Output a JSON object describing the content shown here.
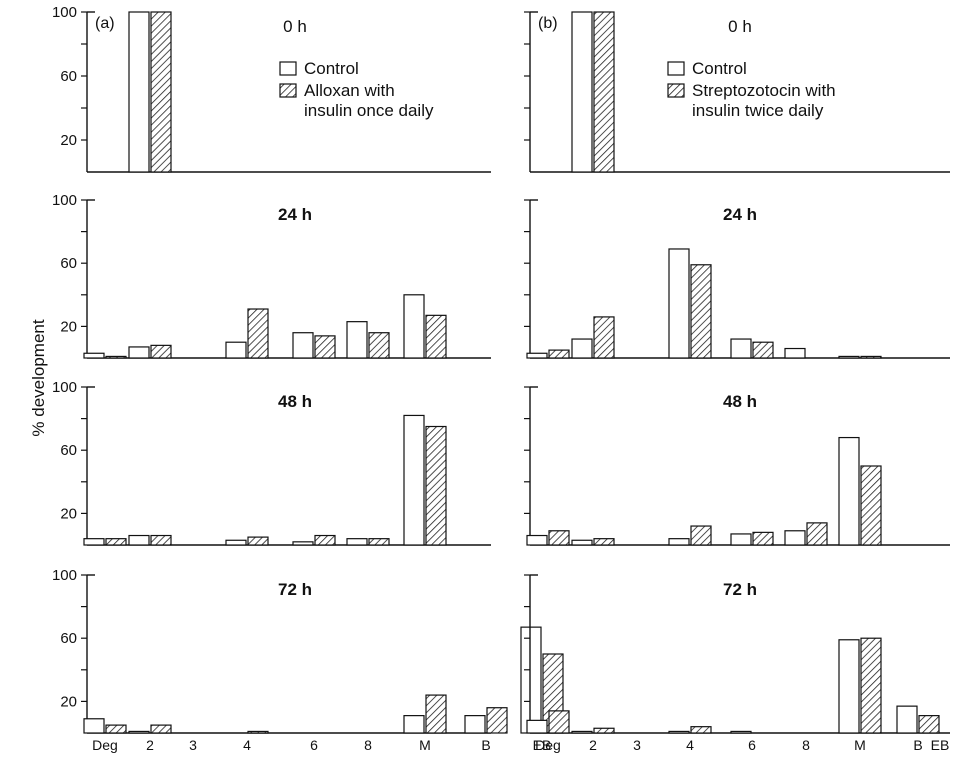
{
  "figure": {
    "ylabel": "% development",
    "categories": [
      "Deg",
      "2",
      "3",
      "4",
      "6",
      "8",
      "M",
      "B",
      "EB"
    ]
  },
  "colors": {
    "control": "#ffffff",
    "treated_hatch": "#222222",
    "axis": "#111111"
  },
  "chart_data": [
    {
      "type": "bar",
      "panel_label": "(a)",
      "time_label": "0 h",
      "legend": [
        "Control",
        "Alloxan with insulin once daily"
      ],
      "legend_lines": [
        [
          "Control"
        ],
        [
          "Alloxan with",
          "insulin once daily"
        ]
      ],
      "categories": [
        "Deg",
        "2",
        "3",
        "4",
        "6",
        "8",
        "M",
        "B",
        "EB"
      ],
      "series": [
        {
          "name": "Control",
          "values": [
            0,
            100,
            0,
            0,
            0,
            0,
            0,
            0,
            0
          ]
        },
        {
          "name": "Alloxan with insulin once daily",
          "values": [
            0,
            100,
            0,
            0,
            0,
            0,
            0,
            0,
            0
          ]
        }
      ],
      "yticks": [
        "100",
        "60",
        "20"
      ],
      "ylim": [
        0,
        100
      ],
      "ylabel": "% development"
    },
    {
      "type": "bar",
      "panel_label": "(b)",
      "time_label": "0 h",
      "legend": [
        "Control",
        "Streptozotocin with insulin twice daily"
      ],
      "legend_lines": [
        [
          "Control"
        ],
        [
          "Streptozotocin with",
          "insulin twice daily"
        ]
      ],
      "categories": [
        "Deg",
        "2",
        "3",
        "4",
        "6",
        "8",
        "M",
        "B",
        "EB"
      ],
      "series": [
        {
          "name": "Control",
          "values": [
            0,
            100,
            0,
            0,
            0,
            0,
            0,
            0,
            0
          ]
        },
        {
          "name": "Streptozotocin with insulin twice daily",
          "values": [
            0,
            100,
            0,
            0,
            0,
            0,
            0,
            0,
            0
          ]
        }
      ],
      "yticks": [],
      "ylim": [
        0,
        100
      ]
    },
    {
      "type": "bar",
      "time_label": "24 h",
      "categories": [
        "Deg",
        "2",
        "3",
        "4",
        "6",
        "8",
        "M",
        "B",
        "EB"
      ],
      "series": [
        {
          "name": "Control",
          "values": [
            3,
            7,
            0,
            10,
            16,
            23,
            40,
            0,
            0
          ]
        },
        {
          "name": "Alloxan with insulin once daily",
          "values": [
            1,
            8,
            0,
            31,
            14,
            16,
            27,
            0,
            0
          ]
        }
      ],
      "yticks": [
        "100",
        "60",
        "20"
      ],
      "ylim": [
        0,
        100
      ]
    },
    {
      "type": "bar",
      "time_label": "24 h",
      "categories": [
        "Deg",
        "2",
        "3",
        "4",
        "6",
        "8",
        "M",
        "B",
        "EB"
      ],
      "series": [
        {
          "name": "Control",
          "values": [
            3,
            12,
            0,
            69,
            12,
            6,
            1,
            0,
            0
          ]
        },
        {
          "name": "Streptozotocin with insulin twice daily",
          "values": [
            5,
            26,
            0,
            59,
            10,
            0,
            1,
            0,
            0
          ]
        }
      ],
      "yticks": [],
      "ylim": [
        0,
        100
      ]
    },
    {
      "type": "bar",
      "time_label": "48 h",
      "categories": [
        "Deg",
        "2",
        "3",
        "4",
        "6",
        "8",
        "M",
        "B",
        "EB"
      ],
      "series": [
        {
          "name": "Control",
          "values": [
            4,
            6,
            0,
            3,
            2,
            4,
            82,
            0,
            0
          ]
        },
        {
          "name": "Alloxan with insulin once daily",
          "values": [
            4,
            6,
            0,
            5,
            6,
            4,
            75,
            0,
            0
          ]
        }
      ],
      "yticks": [
        "100",
        "60",
        "20"
      ],
      "ylim": [
        0,
        100
      ]
    },
    {
      "type": "bar",
      "time_label": "48 h",
      "categories": [
        "Deg",
        "2",
        "3",
        "4",
        "6",
        "8",
        "M",
        "B",
        "EB"
      ],
      "series": [
        {
          "name": "Control",
          "values": [
            6,
            3,
            0,
            4,
            7,
            9,
            68,
            0,
            0
          ]
        },
        {
          "name": "Streptozotocin with insulin twice daily",
          "values": [
            9,
            4,
            0,
            12,
            8,
            14,
            50,
            0,
            0
          ]
        }
      ],
      "yticks": [],
      "ylim": [
        0,
        100
      ]
    },
    {
      "type": "bar",
      "time_label": "72 h",
      "categories": [
        "Deg",
        "2",
        "3",
        "4",
        "6",
        "8",
        "M",
        "B",
        "EB"
      ],
      "series": [
        {
          "name": "Control",
          "values": [
            9,
            1,
            0,
            0,
            0,
            0,
            11,
            11,
            67
          ]
        },
        {
          "name": "Alloxan with insulin once daily",
          "values": [
            5,
            5,
            0,
            1,
            0,
            0,
            24,
            16,
            50
          ]
        }
      ],
      "yticks": [
        "100",
        "60",
        "20"
      ],
      "ylim": [
        0,
        100
      ]
    },
    {
      "type": "bar",
      "time_label": "72 h",
      "categories": [
        "Deg",
        "2",
        "3",
        "4",
        "6",
        "8",
        "M",
        "B",
        "EB"
      ],
      "series": [
        {
          "name": "Control",
          "values": [
            8,
            1,
            0,
            1,
            1,
            0,
            59,
            17,
            11
          ]
        },
        {
          "name": "Streptozotocin with insulin twice daily",
          "values": [
            14,
            3,
            0,
            4,
            0,
            0,
            60,
            11,
            5
          ]
        }
      ],
      "yticks": [],
      "ylim": [
        0,
        100
      ]
    }
  ]
}
